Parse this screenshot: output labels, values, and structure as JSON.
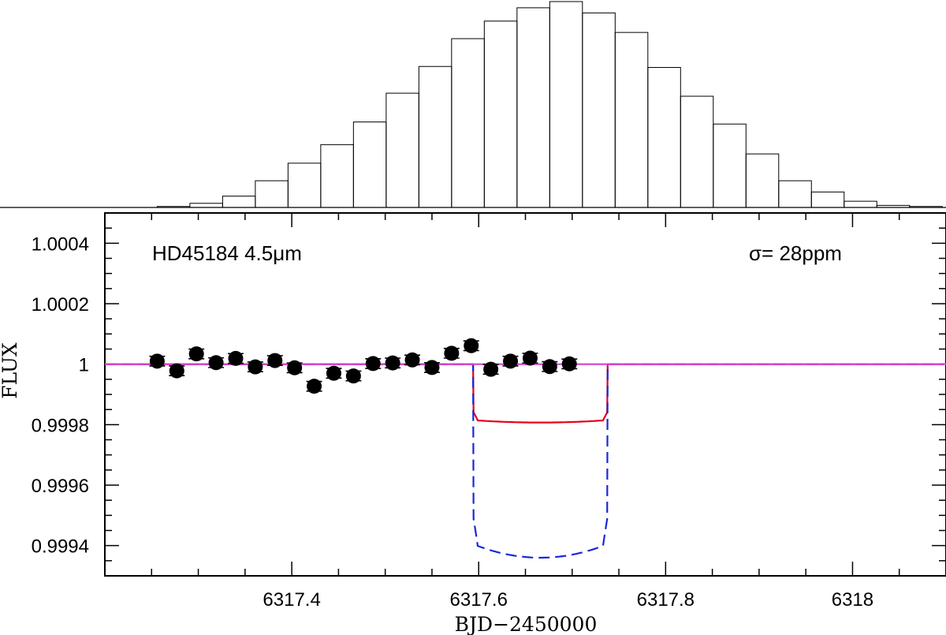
{
  "chart_data": [
    {
      "type": "histogram",
      "panel": "top",
      "bins": [
        {
          "x0": 6317.256,
          "x1": 6317.291,
          "count": 0.005
        },
        {
          "x0": 6317.291,
          "x1": 6317.326,
          "count": 0.02
        },
        {
          "x0": 6317.326,
          "x1": 6317.361,
          "count": 0.055
        },
        {
          "x0": 6317.361,
          "x1": 6317.396,
          "count": 0.13
        },
        {
          "x0": 6317.396,
          "x1": 6317.431,
          "count": 0.215
        },
        {
          "x0": 6317.431,
          "x1": 6317.466,
          "count": 0.305
        },
        {
          "x0": 6317.466,
          "x1": 6317.501,
          "count": 0.415
        },
        {
          "x0": 6317.501,
          "x1": 6317.536,
          "count": 0.555
        },
        {
          "x0": 6317.536,
          "x1": 6317.571,
          "count": 0.685
        },
        {
          "x0": 6317.571,
          "x1": 6317.606,
          "count": 0.82
        },
        {
          "x0": 6317.606,
          "x1": 6317.641,
          "count": 0.905
        },
        {
          "x0": 6317.641,
          "x1": 6317.676,
          "count": 0.97
        },
        {
          "x0": 6317.676,
          "x1": 6317.711,
          "count": 1.0
        },
        {
          "x0": 6317.711,
          "x1": 6317.746,
          "count": 0.945
        },
        {
          "x0": 6317.746,
          "x1": 6317.781,
          "count": 0.85
        },
        {
          "x0": 6317.781,
          "x1": 6317.816,
          "count": 0.68
        },
        {
          "x0": 6317.816,
          "x1": 6317.851,
          "count": 0.54
        },
        {
          "x0": 6317.851,
          "x1": 6317.886,
          "count": 0.405
        },
        {
          "x0": 6317.886,
          "x1": 6317.921,
          "count": 0.26
        },
        {
          "x0": 6317.921,
          "x1": 6317.956,
          "count": 0.13
        },
        {
          "x0": 6317.956,
          "x1": 6317.991,
          "count": 0.075
        },
        {
          "x0": 6317.991,
          "x1": 6318.026,
          "count": 0.03
        },
        {
          "x0": 6318.026,
          "x1": 6318.061,
          "count": 0.01
        },
        {
          "x0": 6318.061,
          "x1": 6318.096,
          "count": 0.005
        }
      ],
      "ylim": [
        0,
        1.0
      ]
    },
    {
      "type": "scatter",
      "panel": "bottom",
      "title": "",
      "xlabel": "BJD−2450000",
      "ylabel": "FLUX",
      "xlim": [
        6317.2,
        6318.1
      ],
      "ylim": [
        0.9993,
        1.0005
      ],
      "xticks": [
        6317.4,
        6317.6,
        6317.8,
        6318
      ],
      "xtick_labels": [
        "6317.4",
        "6317.6",
        "6317.8",
        "6318"
      ],
      "yticks": [
        0.9994,
        0.9996,
        0.9998,
        1.0,
        1.0002,
        1.0004
      ],
      "ytick_labels": [
        "0.9994",
        "0.9996",
        "0.9998",
        "1",
        "1.0002",
        "1.0004"
      ],
      "grid": false,
      "annotations": [
        {
          "text": "HD45184 4.5μm",
          "x": 6317.25,
          "y": 1.0003
        },
        {
          "text": "σ= 28ppm",
          "x": 6317.89,
          "y": 1.0003
        }
      ],
      "series": [
        {
          "points": [
            {
              "x": 6317.256,
              "y": 1.00001,
              "err": 1.6e-05
            },
            {
              "x": 6317.277,
              "y": 0.999978,
              "err": 1.6e-05
            },
            {
              "x": 6317.298,
              "y": 1.000034,
              "err": 1.6e-05
            },
            {
              "x": 6317.319,
              "y": 1.000005,
              "err": 1.6e-05
            },
            {
              "x": 6317.34,
              "y": 1.000019,
              "err": 1.6e-05
            },
            {
              "x": 6317.361,
              "y": 0.999991,
              "err": 1.6e-05
            },
            {
              "x": 6317.382,
              "y": 1.000012,
              "err": 1.6e-05
            },
            {
              "x": 6317.403,
              "y": 0.999988,
              "err": 1.6e-05
            },
            {
              "x": 6317.424,
              "y": 0.999927,
              "err": 1.6e-05
            },
            {
              "x": 6317.445,
              "y": 0.99997,
              "err": 1.6e-05
            },
            {
              "x": 6317.466,
              "y": 0.999961,
              "err": 1.6e-05
            },
            {
              "x": 6317.487,
              "y": 1.000002,
              "err": 1.6e-05
            },
            {
              "x": 6317.508,
              "y": 1.000004,
              "err": 1.6e-05
            },
            {
              "x": 6317.529,
              "y": 1.000014,
              "err": 1.6e-05
            },
            {
              "x": 6317.55,
              "y": 0.999989,
              "err": 1.6e-05
            },
            {
              "x": 6317.571,
              "y": 1.000036,
              "err": 1.6e-05
            },
            {
              "x": 6317.592,
              "y": 1.000061,
              "err": 1.6e-05
            },
            {
              "x": 6317.613,
              "y": 0.999983,
              "err": 1.6e-05
            },
            {
              "x": 6317.634,
              "y": 1.00001,
              "err": 1.6e-05
            },
            {
              "x": 6317.655,
              "y": 1.00002,
              "err": 1.6e-05
            },
            {
              "x": 6317.676,
              "y": 0.999992,
              "err": 1.6e-05
            },
            {
              "x": 6317.697,
              "y": 1.000001,
              "err": 1.6e-05
            }
          ],
          "color": "#000000"
        },
        {
          "type": "line",
          "color": "#e8001b",
          "style": "solid",
          "model": {
            "t1": 6317.594,
            "t2": 6317.738,
            "depth": 0.000185,
            "ingress": 0.005,
            "curvature": 8e-06
          }
        },
        {
          "type": "line",
          "color": "#1a28d6",
          "style": "dashed",
          "model": {
            "t1": 6317.594,
            "t2": 6317.738,
            "depth": 0.000595,
            "ingress": 0.005,
            "curvature": 4.5e-05
          }
        },
        {
          "type": "line",
          "color": "#d83fd1",
          "style": "solid",
          "baseline": 1.0
        }
      ]
    }
  ]
}
